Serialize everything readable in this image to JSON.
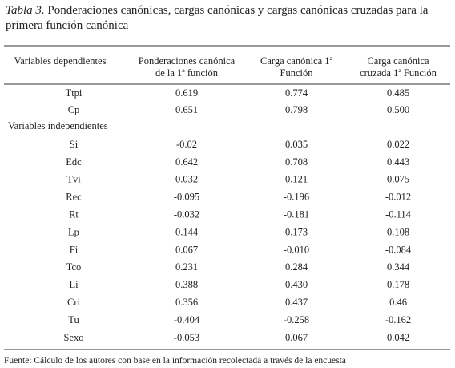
{
  "caption": {
    "label": "Tabla 3.",
    "text": "Ponderaciones canónicas, cargas canónicas y cargas canónicas cruzadas para la primera función canónica"
  },
  "table": {
    "headers": [
      [
        "Variables dependientes"
      ],
      [
        "Ponderaciones canónica",
        "de la 1ª función"
      ],
      [
        "Carga canónica 1ª",
        "Función"
      ],
      [
        "Carga canónica",
        "cruzada 1ª Función"
      ]
    ],
    "dependent_rows": [
      [
        "Ttpi",
        "0.619",
        "0.774",
        "0.485"
      ],
      [
        "Cp",
        "0.651",
        "0.798",
        "0.500"
      ]
    ],
    "independent_label": "Variables independientes",
    "independent_rows": [
      [
        "Si",
        "-0.02",
        "0.035",
        "0.022"
      ],
      [
        "Edc",
        "0.642",
        "0.708",
        "0.443"
      ],
      [
        "Tvi",
        "0.032",
        "0.121",
        "0.075"
      ],
      [
        "Rec",
        "-0.095",
        "-0.196",
        "-0.012"
      ],
      [
        "Rt",
        "-0.032",
        "-0.181",
        "-0.114"
      ],
      [
        "Lp",
        "0.144",
        "0.173",
        "0.108"
      ],
      [
        "Fi",
        "0.067",
        "-0.010",
        "-0.084"
      ],
      [
        "Tco",
        "0.231",
        "0.284",
        "0.344"
      ],
      [
        "Li",
        "0.388",
        "0.430",
        "0.178"
      ],
      [
        "Cri",
        "0.356",
        "0.437",
        "0.46"
      ],
      [
        "Tu",
        "-0.404",
        "-0.258",
        "-0.162"
      ],
      [
        "Sexo",
        "-0.053",
        "0.067",
        "0.042"
      ]
    ]
  },
  "footer": "Fuente: Cálculo de los autores con base en la información recolectada a través de la encuesta"
}
